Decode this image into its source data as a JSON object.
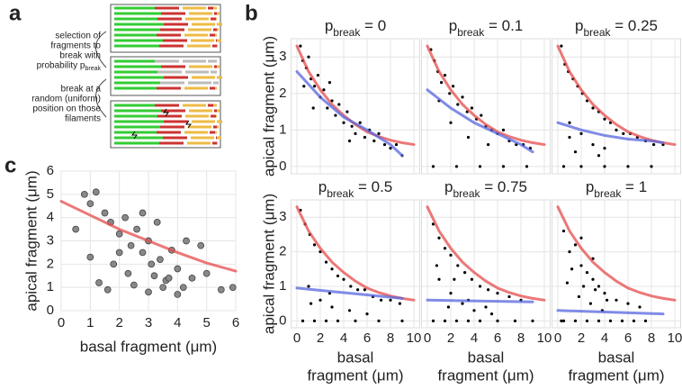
{
  "panel_a": {
    "label": "a",
    "step1": [
      "selection of",
      "fragments to",
      "break with",
      "probability p"
    ],
    "step1_sub": "break",
    "step2": [
      "break at a",
      "random (uniform)",
      "position on those",
      "filaments"
    ]
  },
  "chart_data": [
    {
      "type": "scatter",
      "panel_label": "b",
      "xticks": [
        0,
        2,
        4,
        6,
        8,
        10
      ],
      "yticks": [
        0,
        1,
        2,
        3
      ],
      "xlim": [
        -0.5,
        10.5
      ],
      "ylim": [
        -0.2,
        3.5
      ],
      "grid": true,
      "xlabel": [
        "basal",
        "fragment (μm)"
      ],
      "ylabel": "apical fragment (μm)",
      "panels": [
        {
          "title": {
            "main": "p",
            "sub": "break",
            "rest": " = 0"
          },
          "points": {
            "x": [
              0.3,
              0.5,
              0.8,
              1.0,
              1.2,
              1.5,
              1.8,
              2.0,
              2.3,
              2.6,
              3.0,
              3.3,
              3.6,
              4.0,
              4.3,
              4.7,
              5.0,
              5.4,
              5.8,
              6.2,
              6.6,
              7.0,
              7.5,
              8.0,
              8.5,
              9.0,
              1.4,
              2.8,
              4.5,
              0.6
            ],
            "y": [
              3.3,
              2.9,
              2.7,
              3.0,
              2.4,
              2.2,
              2.5,
              1.9,
              2.1,
              1.6,
              1.8,
              1.4,
              1.7,
              1.2,
              1.5,
              1.1,
              0.9,
              1.2,
              0.8,
              1.0,
              0.7,
              0.9,
              0.6,
              0.5,
              0.6,
              0.3,
              1.6,
              2.3,
              0.7,
              2.2
            ]
          },
          "fit_red": {
            "x": [
              0,
              1,
              2,
              3,
              4,
              5,
              6,
              7,
              8,
              9,
              10
            ],
            "y": [
              3.3,
              2.6,
              2.1,
              1.7,
              1.4,
              1.15,
              0.95,
              0.82,
              0.72,
              0.65,
              0.6
            ]
          },
          "fit_blue": {
            "x": [
              0,
              2,
              4,
              6,
              8,
              9
            ],
            "y": [
              2.6,
              1.9,
              1.35,
              1.0,
              0.6,
              0.3
            ]
          }
        },
        {
          "title": {
            "main": "p",
            "sub": "break",
            "rest": " = 0.1"
          },
          "points": {
            "x": [
              0.3,
              0.6,
              0.9,
              1.2,
              1.5,
              1.9,
              2.2,
              2.6,
              3.0,
              3.4,
              3.8,
              4.2,
              4.6,
              5.0,
              5.5,
              6.0,
              6.5,
              7.0,
              7.6,
              8.2,
              8.8,
              1.0,
              2.0,
              3.5,
              5.2,
              0.5,
              2.5,
              4.5,
              6.5,
              8.5
            ],
            "y": [
              3.2,
              2.9,
              2.6,
              2.3,
              2.5,
              2.0,
              2.2,
              1.7,
              1.9,
              1.5,
              1.6,
              1.3,
              1.4,
              1.1,
              1.0,
              0.9,
              1.0,
              0.7,
              0.6,
              0.6,
              0.5,
              1.8,
              1.2,
              0.8,
              0.6,
              0,
              0,
              0,
              0,
              0
            ]
          },
          "fit_red": {
            "x": [
              0,
              1,
              2,
              3,
              4,
              5,
              6,
              7,
              8,
              9,
              10
            ],
            "y": [
              3.3,
              2.6,
              2.1,
              1.7,
              1.4,
              1.15,
              0.95,
              0.82,
              0.72,
              0.65,
              0.6
            ]
          },
          "fit_blue": {
            "x": [
              0,
              2,
              4,
              6,
              8,
              9
            ],
            "y": [
              2.1,
              1.6,
              1.2,
              0.9,
              0.6,
              0.4
            ]
          }
        },
        {
          "title": {
            "main": "p",
            "sub": "break",
            "rest": " = 0.25"
          },
          "points": {
            "x": [
              0.3,
              0.6,
              0.9,
              1.3,
              1.7,
              2.1,
              2.5,
              3.0,
              3.5,
              4.0,
              4.5,
              5.0,
              5.6,
              6.2,
              6.8,
              7.5,
              8.2,
              9.0,
              1.0,
              2.0,
              3.0,
              4.0,
              1.5,
              3.5,
              0.5,
              2.0,
              4.0,
              6.0,
              8.0,
              1.0
            ],
            "y": [
              3.3,
              2.8,
              2.6,
              2.4,
              2.2,
              2.0,
              1.8,
              1.6,
              1.5,
              1.3,
              1.2,
              1.0,
              0.9,
              0.9,
              0.8,
              0.7,
              0.6,
              0.6,
              1.2,
              0.9,
              0.6,
              0.5,
              0.4,
              0.3,
              0,
              0,
              0,
              0,
              0,
              0.8
            ]
          },
          "fit_red": {
            "x": [
              0,
              1,
              2,
              3,
              4,
              5,
              6,
              7,
              8,
              9,
              10
            ],
            "y": [
              3.3,
              2.6,
              2.1,
              1.7,
              1.4,
              1.15,
              0.95,
              0.82,
              0.72,
              0.65,
              0.6
            ]
          },
          "fit_blue": {
            "x": [
              0,
              2,
              4,
              6,
              8,
              9
            ],
            "y": [
              1.2,
              1.0,
              0.85,
              0.75,
              0.7,
              0.65
            ]
          }
        },
        {
          "title": {
            "main": "p",
            "sub": "break",
            "rest": " = 0.5"
          },
          "points": {
            "x": [
              0.3,
              0.7,
              1.1,
              1.5,
              2.0,
              2.5,
              3.0,
              3.5,
              4.0,
              4.6,
              5.2,
              5.8,
              6.5,
              7.2,
              8.0,
              8.8,
              1.0,
              2.0,
              3.0,
              4.5,
              6.0,
              0.5,
              1.5,
              2.5,
              3.5,
              5.0,
              7.0,
              9.0,
              1.2,
              2.8
            ],
            "y": [
              3.2,
              2.8,
              2.5,
              2.2,
              2.0,
              1.7,
              1.5,
              1.3,
              1.2,
              1.0,
              0.9,
              0.9,
              0.7,
              0.6,
              0.6,
              0.5,
              1.0,
              0.6,
              0.4,
              0.3,
              0.2,
              0,
              0,
              0,
              0,
              0,
              0,
              0,
              0.5,
              0.8
            ]
          },
          "fit_red": {
            "x": [
              0,
              1,
              2,
              3,
              4,
              5,
              6,
              7,
              8,
              9,
              10
            ],
            "y": [
              3.3,
              2.6,
              2.1,
              1.7,
              1.4,
              1.15,
              0.95,
              0.82,
              0.72,
              0.65,
              0.6
            ]
          },
          "fit_blue": {
            "x": [
              0,
              3,
              6,
              9
            ],
            "y": [
              0.95,
              0.85,
              0.75,
              0.65
            ]
          }
        },
        {
          "title": {
            "main": "p",
            "sub": "break",
            "rest": " = 0.75"
          },
          "points": {
            "x": [
              0.5,
              1.0,
              1.5,
              2.0,
              2.6,
              3.2,
              3.8,
              4.5,
              5.2,
              6.0,
              7.0,
              8.0,
              1.0,
              2.0,
              3.0,
              4.0,
              5.5,
              0.5,
              1.5,
              2.5,
              3.5,
              4.5,
              6.0,
              7.5,
              9.0,
              1.8,
              3.5,
              0.8,
              2.3,
              5.0
            ],
            "y": [
              2.8,
              2.4,
              2.1,
              1.9,
              1.6,
              1.4,
              1.2,
              1.0,
              0.9,
              0.8,
              0.7,
              0.6,
              1.2,
              0.8,
              0.5,
              0.3,
              0.2,
              0,
              0,
              0,
              0,
              0,
              0,
              0,
              0,
              0.4,
              0.6,
              1.6,
              1.2,
              0.4
            ]
          },
          "fit_red": {
            "x": [
              0,
              1,
              2,
              3,
              4,
              5,
              6,
              7,
              8,
              9,
              10
            ],
            "y": [
              3.3,
              2.6,
              2.1,
              1.7,
              1.4,
              1.15,
              0.95,
              0.82,
              0.72,
              0.65,
              0.6
            ]
          },
          "fit_blue": {
            "x": [
              0,
              9
            ],
            "y": [
              0.6,
              0.55
            ]
          }
        },
        {
          "title": {
            "main": "p",
            "sub": "break",
            "rest": " = 1"
          },
          "points": {
            "x": [
              0.5,
              1.0,
              1.5,
              2.0,
              2.5,
              3.0,
              3.5,
              4.0,
              5.0,
              6.0,
              7.0,
              0.8,
              1.8,
              2.8,
              3.8,
              0.5,
              1.5,
              2.5,
              3.5,
              4.5,
              5.5,
              6.5,
              7.5,
              1.2,
              2.2,
              3.2,
              4.2,
              0.3,
              2.0,
              3.0
            ],
            "y": [
              2.6,
              2.0,
              2.2,
              1.6,
              1.4,
              1.2,
              1.0,
              0.8,
              0.6,
              0.5,
              0.4,
              1.1,
              0.7,
              0.5,
              0.3,
              0,
              0,
              0,
              0,
              0,
              0,
              0,
              0,
              1.5,
              1.0,
              0.9,
              0.6,
              0,
              2.4,
              1.8
            ]
          },
          "fit_red": {
            "x": [
              0,
              1,
              2,
              3,
              4,
              5,
              6,
              7,
              8,
              9,
              10
            ],
            "y": [
              3.3,
              2.6,
              2.1,
              1.7,
              1.4,
              1.15,
              0.95,
              0.82,
              0.72,
              0.65,
              0.6
            ]
          },
          "fit_blue": {
            "x": [
              0,
              9
            ],
            "y": [
              0.3,
              0.2
            ]
          }
        }
      ]
    },
    {
      "type": "scatter",
      "panel_label": "c",
      "xlim": [
        0,
        6
      ],
      "ylim": [
        0,
        6
      ],
      "xticks": [
        0,
        1,
        2,
        3,
        4,
        5,
        6
      ],
      "yticks": [
        0,
        1,
        2,
        3,
        4,
        5,
        6
      ],
      "grid": true,
      "xlabel": "basal fragment (μm)",
      "ylabel": "apical fragment (μm)",
      "points": {
        "x": [
          0.5,
          0.8,
          1.0,
          1.2,
          1.5,
          1.7,
          2.0,
          2.2,
          2.4,
          2.6,
          2.8,
          3.0,
          3.2,
          3.4,
          3.6,
          3.8,
          4.0,
          4.2,
          4.5,
          4.8,
          5.0,
          5.5,
          5.9,
          1.3,
          1.8,
          2.5,
          3.0,
          3.5,
          4.0,
          2.0,
          2.8,
          3.3,
          1.0,
          4.3,
          1.6,
          2.3,
          3.1,
          3.7
        ],
        "y": [
          3.5,
          5.0,
          4.6,
          5.1,
          4.2,
          3.8,
          3.3,
          4.0,
          2.8,
          3.5,
          2.5,
          3.0,
          1.5,
          2.2,
          1.3,
          2.6,
          1.8,
          1.0,
          1.4,
          2.8,
          1.6,
          0.9,
          1.0,
          1.2,
          2.0,
          1.1,
          0.8,
          1.0,
          0.7,
          2.5,
          4.2,
          3.8,
          2.3,
          3.0,
          0.9,
          1.6,
          2.0,
          1.4
        ]
      },
      "fit_red": {
        "x": [
          0,
          1,
          2,
          3,
          4,
          5,
          6
        ],
        "y": [
          4.7,
          4.1,
          3.5,
          3.0,
          2.5,
          2.05,
          1.7
        ]
      }
    }
  ]
}
